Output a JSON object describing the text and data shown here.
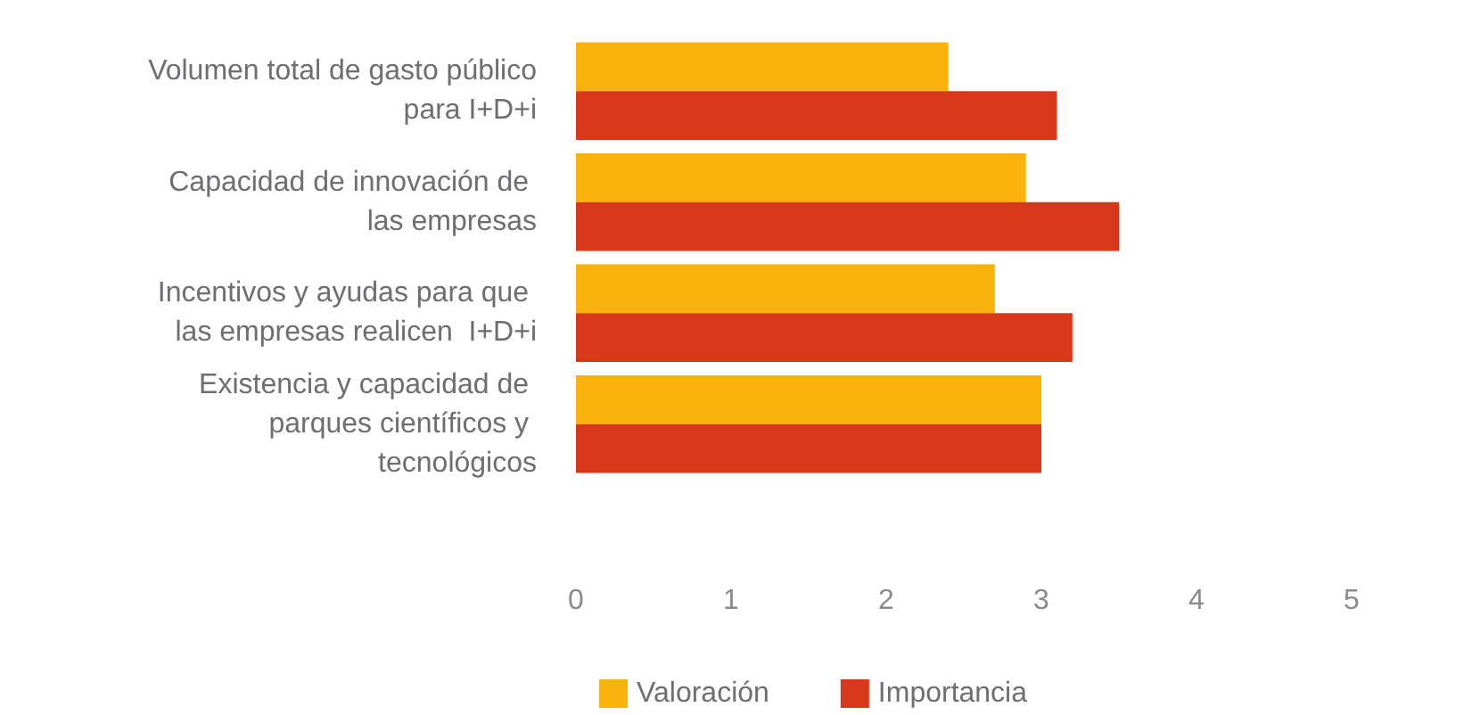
{
  "chart_data": {
    "type": "bar",
    "orientation": "horizontal",
    "categories": [
      "Volumen total de gasto público para I+D+i",
      "Capacidad de innovación de las empresas",
      "Incentivos y ayudas para que las empresas realicen  I+D+i",
      "Existencia y capacidad de parques científicos y tecnológicos"
    ],
    "series": [
      {
        "name": "Valoración",
        "color": "#f9b10c",
        "values": [
          2.4,
          2.9,
          2.7,
          3.0
        ]
      },
      {
        "name": "Importancia",
        "color": "#d8381a",
        "values": [
          3.1,
          3.5,
          3.2,
          3.0
        ]
      }
    ],
    "xlim": [
      0,
      5
    ],
    "xticks": [
      0,
      1,
      2,
      3,
      4,
      5
    ],
    "grid": false,
    "legend": "bottom"
  }
}
